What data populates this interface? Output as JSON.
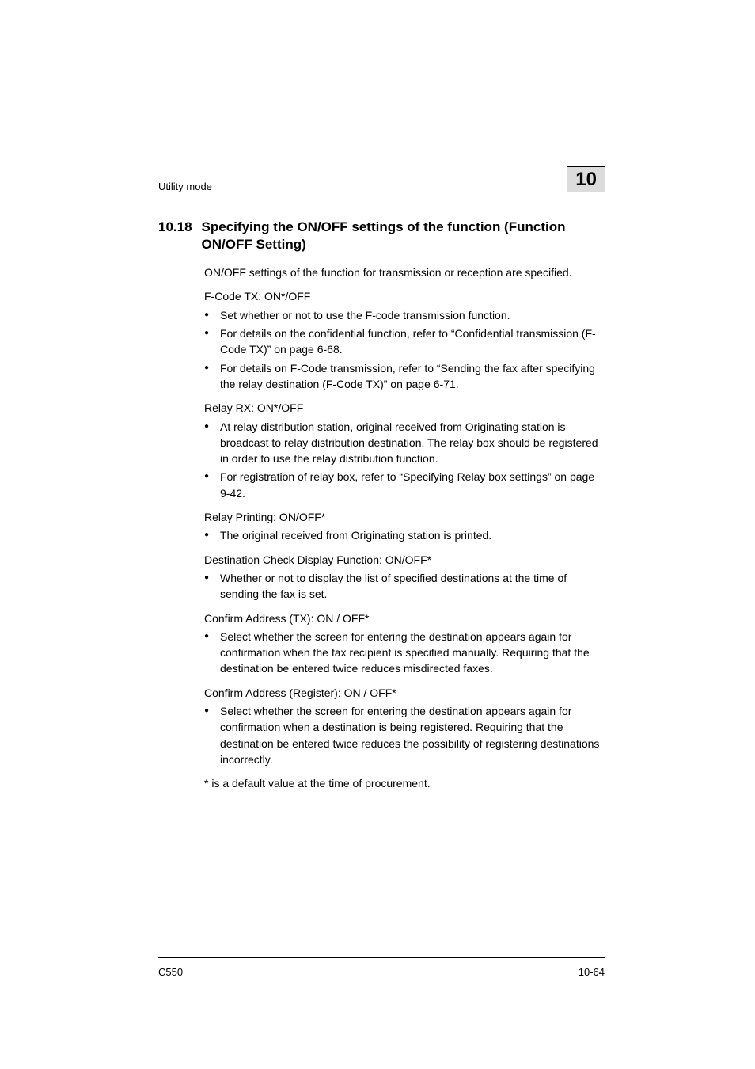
{
  "header": {
    "running_head": "Utility mode",
    "chapter_number": "10"
  },
  "section": {
    "number": "10.18",
    "title": "Specifying the ON/OFF settings of the function (Function ON/OFF Setting)"
  },
  "intro": "ON/OFF settings of the function for transmission or reception are specified.",
  "fcode_tx": {
    "heading": "F-Code TX: ON*/OFF",
    "bullets": [
      "Set whether or not to use the F-code transmission function.",
      "For details on the confidential function, refer to “Confidential transmission (F-Code TX)” on page 6-68.",
      "For details on F-Code transmission, refer to “Sending the fax after specifying the relay destination (F-Code TX)” on page 6-71."
    ]
  },
  "relay_rx": {
    "heading": "Relay RX: ON*/OFF",
    "bullets": [
      "At relay distribution station, original received from Originating station is broadcast to relay distribution destination. The relay box should be registered in order to use the relay distribution function.",
      "For registration of relay box, refer to “Specifying Relay box settings” on page 9-42."
    ]
  },
  "relay_printing": {
    "heading": "Relay Printing: ON/OFF*",
    "bullets": [
      "The original received from Originating station is printed."
    ]
  },
  "dest_check": {
    "heading": "Destination Check Display Function: ON/OFF*",
    "bullets": [
      "Whether or not to display the list of specified destinations at the time of sending the fax is set."
    ]
  },
  "confirm_tx": {
    "heading": "Confirm Address (TX): ON / OFF*",
    "bullets": [
      "Select whether the screen for entering the destination appears again for confirmation when the fax recipient is specified manually. Requiring that the destination be entered twice reduces misdirected faxes."
    ]
  },
  "confirm_register": {
    "heading": "Confirm Address (Register): ON / OFF*",
    "bullets": [
      "Select whether the screen for entering the destination appears again for confirmation when a destination is being registered. Requiring that the destination be entered twice reduces the possibility of registering destinations incorrectly."
    ]
  },
  "default_note": "* is a default value at the time of procurement.",
  "footer": {
    "model": "C550",
    "page_num": "10-64"
  }
}
